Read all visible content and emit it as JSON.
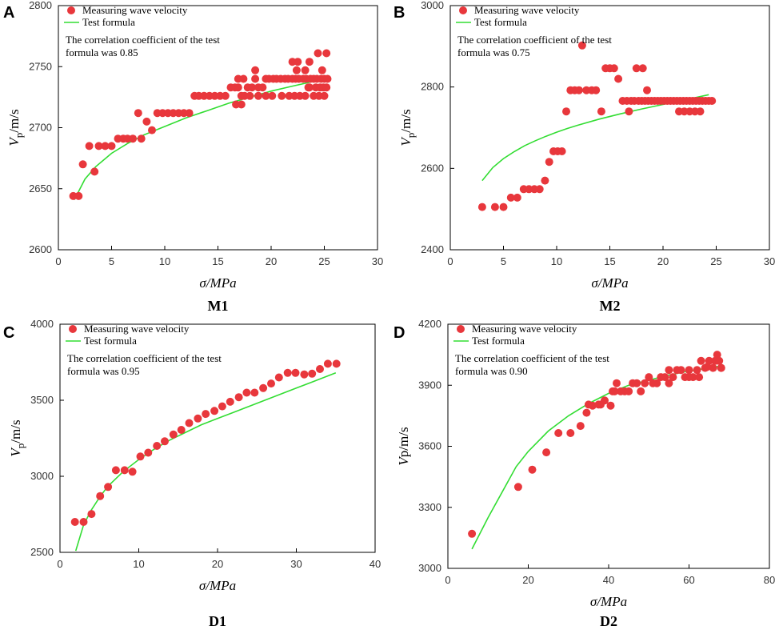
{
  "colors": {
    "points": "#e8373c",
    "curve": "#33dd33",
    "axis": "#000000"
  },
  "chart_data": [
    {
      "panel": "A",
      "caption": "M1",
      "type": "scatter",
      "xlabel": "σ/MPa",
      "ylabel_main": "V",
      "ylabel_sub": "p",
      "ylabel_rest": "/m/s",
      "xlim": [
        0,
        30
      ],
      "ylim": [
        2600,
        2800
      ],
      "xticks": [
        0,
        5,
        10,
        15,
        20,
        25,
        30
      ],
      "yticks": [
        2600,
        2650,
        2700,
        2750,
        2800
      ],
      "legend": {
        "points": "Measuring wave velocity",
        "line": "Test formula"
      },
      "note": [
        "The correlation coefficient of the test",
        "formula was 0.85"
      ],
      "series": [
        {
          "name": "Measuring wave velocity",
          "kind": "points",
          "x": [
            1.4,
            1.9,
            2.3,
            2.9,
            3.4,
            3.8,
            4.4,
            5.0,
            5.6,
            6.1,
            6.5,
            7.0,
            7.5,
            7.8,
            8.3,
            8.8,
            9.3,
            9.8,
            10.3,
            10.8,
            11.3,
            11.8,
            12.3,
            12.8,
            13.2,
            13.7,
            14.2,
            14.7,
            15.2,
            15.7,
            16.2,
            16.6,
            16.9,
            17.2,
            17.5,
            17.8,
            18.2,
            18.5,
            18.8,
            19.2,
            19.5,
            19.8,
            20.2,
            20.5,
            20.9,
            21.3,
            21.6,
            22.0,
            22.3,
            22.6,
            23.0,
            23.3,
            23.7,
            24.0,
            24.3,
            24.7,
            25.0,
            25.3,
            16.7,
            17.2,
            16.9,
            17.4,
            18.0,
            18.5,
            18.8,
            19.5,
            20.1,
            21.0,
            21.7,
            22.2,
            22.7,
            23.2,
            23.6,
            24.2,
            24.6,
            24.9,
            25.2,
            22.0,
            22.5,
            23.2,
            23.5,
            24.0,
            24.5,
            25.0,
            24.4,
            24.8,
            25.2,
            23.6,
            22.4
          ],
          "y": [
            2644,
            2644,
            2670,
            2685,
            2664,
            2685,
            2685,
            2685,
            2691,
            2691,
            2691,
            2691,
            2712,
            2691,
            2705,
            2698,
            2712,
            2712,
            2712,
            2712,
            2712,
            2712,
            2712,
            2726,
            2726,
            2726,
            2726,
            2726,
            2726,
            2726,
            2733,
            2733,
            2733,
            2726,
            2726,
            2733,
            2733,
            2740,
            2733,
            2733,
            2740,
            2740,
            2740,
            2740,
            2740,
            2740,
            2740,
            2740,
            2740,
            2740,
            2740,
            2740,
            2740,
            2740,
            2740,
            2740,
            2740,
            2740,
            2719,
            2719,
            2740,
            2740,
            2726,
            2747,
            2726,
            2726,
            2726,
            2726,
            2726,
            2726,
            2726,
            2726,
            2733,
            2733,
            2733,
            2733,
            2733,
            2754,
            2754,
            2747,
            2733,
            2726,
            2726,
            2726,
            2761,
            2747,
            2761,
            2754,
            2747
          ]
        },
        {
          "name": "Test formula",
          "kind": "line",
          "x": [
            1.5,
            2.5,
            3.5,
            5,
            6.5,
            8,
            10,
            12,
            14,
            16,
            18,
            20,
            22,
            24,
            25.5
          ],
          "y": [
            2641,
            2658,
            2668,
            2679,
            2687,
            2694,
            2701,
            2708,
            2714,
            2720,
            2725,
            2730,
            2734,
            2738,
            2741
          ]
        }
      ]
    },
    {
      "panel": "B",
      "caption": "M2",
      "type": "scatter",
      "xlabel": "σ/MPa",
      "ylabel_main": "V",
      "ylabel_sub": "p",
      "ylabel_rest": "/m/s",
      "xlim": [
        0,
        30
      ],
      "ylim": [
        2400,
        3000
      ],
      "xticks": [
        0,
        5,
        10,
        15,
        20,
        25,
        30
      ],
      "yticks": [
        2400,
        2600,
        2800,
        3000
      ],
      "legend": {
        "points": "Measuring wave velocity",
        "line": "Test formula"
      },
      "note": [
        "The correlation coefficient of the test",
        "formula was 0.75"
      ],
      "series": [
        {
          "name": "Measuring wave velocity",
          "kind": "points",
          "x": [
            3.0,
            4.2,
            5.0,
            5.7,
            6.3,
            6.9,
            7.4,
            7.9,
            8.4,
            8.9,
            9.3,
            9.7,
            10.1,
            10.5,
            10.9,
            11.3,
            11.7,
            12.1,
            12.4,
            12.8,
            13.3,
            13.7,
            14.2,
            14.6,
            15.0,
            15.4,
            15.8,
            16.2,
            16.6,
            17.0,
            17.3,
            17.7,
            18.0,
            18.3,
            18.6,
            18.9,
            19.2,
            19.5,
            19.8,
            20.1,
            20.4,
            20.7,
            21.0,
            21.3,
            21.6,
            21.9,
            22.2,
            22.5,
            22.8,
            23.1,
            23.4,
            23.7,
            24.0,
            24.3,
            24.6,
            17.5,
            18.1,
            18.5,
            21.5,
            22.0,
            22.5,
            23.0,
            23.5,
            16.8
          ],
          "y": [
            2505,
            2505,
            2505,
            2528,
            2528,
            2549,
            2549,
            2549,
            2549,
            2570,
            2616,
            2642,
            2642,
            2642,
            2740,
            2792,
            2792,
            2792,
            2902,
            2792,
            2792,
            2792,
            2740,
            2846,
            2846,
            2846,
            2820,
            2766,
            2766,
            2766,
            2766,
            2766,
            2766,
            2766,
            2766,
            2766,
            2766,
            2766,
            2766,
            2766,
            2766,
            2766,
            2766,
            2766,
            2766,
            2766,
            2766,
            2766,
            2766,
            2766,
            2766,
            2766,
            2766,
            2766,
            2766,
            2846,
            2846,
            2792,
            2740,
            2740,
            2740,
            2740,
            2740,
            2740
          ]
        },
        {
          "name": "Test formula",
          "kind": "line",
          "x": [
            3,
            4,
            5,
            6,
            7,
            8,
            9,
            10,
            11,
            12,
            14,
            16,
            18,
            20,
            22,
            24.3
          ],
          "y": [
            2570,
            2602,
            2624,
            2641,
            2656,
            2668,
            2679,
            2689,
            2698,
            2706,
            2721,
            2734,
            2746,
            2757,
            2768,
            2781
          ]
        }
      ]
    },
    {
      "panel": "C",
      "caption": "D1",
      "type": "scatter",
      "xlabel": "σ/MPa",
      "ylabel_main": "V",
      "ylabel_sub": "p",
      "ylabel_rest": "/m/s",
      "xlim": [
        0,
        40
      ],
      "ylim": [
        2500,
        4000
      ],
      "xticks": [
        0,
        10,
        20,
        30,
        40
      ],
      "yticks": [
        2500,
        3000,
        3500,
        4000
      ],
      "legend": {
        "points": "Measuring wave velocity",
        "line": "Test formula"
      },
      "note": [
        "The correlation coefficient of the test",
        "formula was 0.95"
      ],
      "series": [
        {
          "name": "Measuring wave velocity",
          "kind": "points",
          "x": [
            1.9,
            3.0,
            4.0,
            5.1,
            6.1,
            7.1,
            8.2,
            9.2,
            10.2,
            11.2,
            12.3,
            13.3,
            14.4,
            15.4,
            16.4,
            17.5,
            18.5,
            19.6,
            20.6,
            21.6,
            22.7,
            23.7,
            24.7,
            25.8,
            26.8,
            27.8,
            28.9,
            29.9,
            31.0,
            32.0,
            33.0,
            34.0,
            35.1
          ],
          "y": [
            2700,
            2700,
            2752,
            2870,
            2930,
            3040,
            3040,
            3030,
            3130,
            3155,
            3200,
            3230,
            3275,
            3305,
            3350,
            3380,
            3410,
            3430,
            3460,
            3490,
            3520,
            3550,
            3550,
            3580,
            3610,
            3650,
            3680,
            3680,
            3670,
            3675,
            3705,
            3740,
            3740
          ]
        },
        {
          "name": "Test formula",
          "kind": "line",
          "x": [
            2,
            3,
            4,
            5,
            6,
            8,
            10,
            12,
            14,
            16,
            18,
            20,
            22,
            24,
            26,
            28,
            30,
            32,
            35
          ],
          "y": [
            2510,
            2680,
            2780,
            2860,
            2930,
            3030,
            3110,
            3180,
            3240,
            3290,
            3340,
            3380,
            3420,
            3460,
            3500,
            3540,
            3580,
            3620,
            3680
          ]
        }
      ]
    },
    {
      "panel": "D",
      "caption": "D2",
      "type": "scatter",
      "xlabel": "σ/MPa",
      "ylabel_main": "V",
      "ylabel_sub": "",
      "ylabel_rest": "p/m/s",
      "xlim": [
        0,
        80
      ],
      "ylim": [
        3000,
        4200
      ],
      "xticks": [
        0,
        20,
        40,
        60,
        80
      ],
      "yticks": [
        3000,
        3300,
        3600,
        3900,
        4200
      ],
      "legend": {
        "points": "Measuring wave velocity",
        "line": "Test formula"
      },
      "note": [
        "The correlation coefficient of the test",
        "formula was 0.90"
      ],
      "series": [
        {
          "name": "Measuring wave velocity",
          "kind": "points",
          "x": [
            6,
            17.5,
            21,
            24.5,
            27.5,
            30.5,
            33,
            35,
            36,
            37.5,
            39,
            40.5,
            42,
            44,
            46,
            48,
            50,
            52,
            54,
            56,
            58,
            60,
            62,
            64,
            66,
            68,
            43,
            45,
            47,
            49,
            51,
            53,
            55,
            57,
            59,
            61,
            63,
            65,
            67,
            41,
            55,
            60,
            62.5,
            64.5,
            66.5,
            68,
            67.5,
            34.5,
            38,
            41.5
          ],
          "y": [
            3170,
            3400,
            3485,
            3570,
            3665,
            3665,
            3700,
            3805,
            3800,
            3805,
            3825,
            3800,
            3910,
            3870,
            3910,
            3870,
            3940,
            3910,
            3940,
            3940,
            3975,
            3975,
            3975,
            3985,
            3985,
            3985,
            3870,
            3870,
            3910,
            3910,
            3910,
            3940,
            3910,
            3975,
            3940,
            3940,
            4020,
            4020,
            4050,
            3870,
            3975,
            3940,
            3940,
            3990,
            4020,
            3985,
            4020,
            3765,
            3805,
            3870
          ]
        },
        {
          "name": "Test formula",
          "kind": "line",
          "x": [
            6,
            10,
            17,
            20,
            25,
            30,
            35,
            40,
            45,
            50,
            55,
            60,
            65,
            68
          ],
          "y": [
            3095,
            3250,
            3500,
            3575,
            3675,
            3750,
            3810,
            3860,
            3900,
            3925,
            3950,
            3970,
            3985,
            3995
          ]
        }
      ]
    }
  ]
}
